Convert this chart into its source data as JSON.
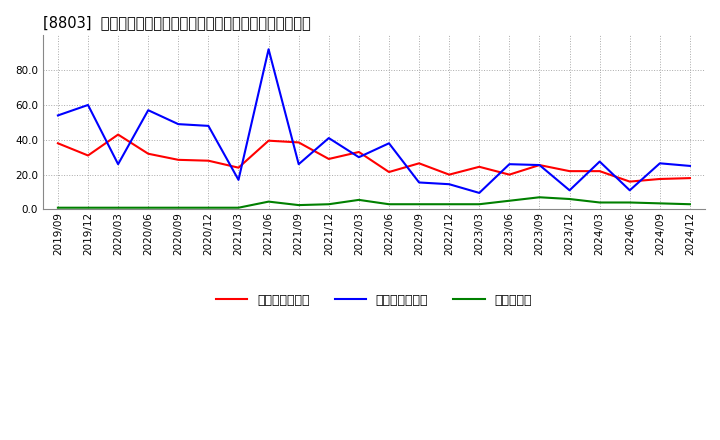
{
  "title": "[8803]  売上債権回転率、買入債務回転率、在庫回転率の推移",
  "dates": [
    "2019/09",
    "2019/12",
    "2020/03",
    "2020/06",
    "2020/09",
    "2020/12",
    "2021/03",
    "2021/06",
    "2021/09",
    "2021/12",
    "2022/03",
    "2022/06",
    "2022/09",
    "2022/12",
    "2023/03",
    "2023/06",
    "2023/09",
    "2023/12",
    "2024/03",
    "2024/06",
    "2024/09",
    "2024/12"
  ],
  "receivable_turnover": [
    38.0,
    31.0,
    43.0,
    32.0,
    28.5,
    28.0,
    24.0,
    39.5,
    38.5,
    29.0,
    33.0,
    21.5,
    26.5,
    20.0,
    24.5,
    20.0,
    25.5,
    22.0,
    22.0,
    16.0,
    17.5,
    18.0
  ],
  "payable_turnover": [
    54.0,
    60.0,
    26.0,
    57.0,
    49.0,
    48.0,
    17.0,
    92.0,
    26.0,
    41.0,
    30.0,
    38.0,
    15.5,
    14.5,
    9.5,
    26.0,
    25.5,
    11.0,
    27.5,
    11.0,
    26.5,
    25.0
  ],
  "inventory_turnover": [
    1.0,
    1.0,
    1.0,
    1.0,
    1.0,
    1.0,
    1.0,
    4.5,
    2.5,
    3.0,
    5.5,
    3.0,
    3.0,
    3.0,
    3.0,
    5.0,
    7.0,
    6.0,
    4.0,
    4.0,
    3.5,
    3.0
  ],
  "receivable_color": "#ff0000",
  "payable_color": "#0000ff",
  "inventory_color": "#008000",
  "background_color": "#ffffff",
  "grid_color": "#aaaaaa",
  "ylim": [
    0.0,
    100.0
  ],
  "yticks": [
    0.0,
    20.0,
    40.0,
    60.0,
    80.0
  ],
  "legend_labels": [
    "売上債権回転率",
    "買入債務回転率",
    "在庫回転率"
  ],
  "title_fontsize": 10.5,
  "tick_fontsize": 7.5,
  "legend_fontsize": 9
}
